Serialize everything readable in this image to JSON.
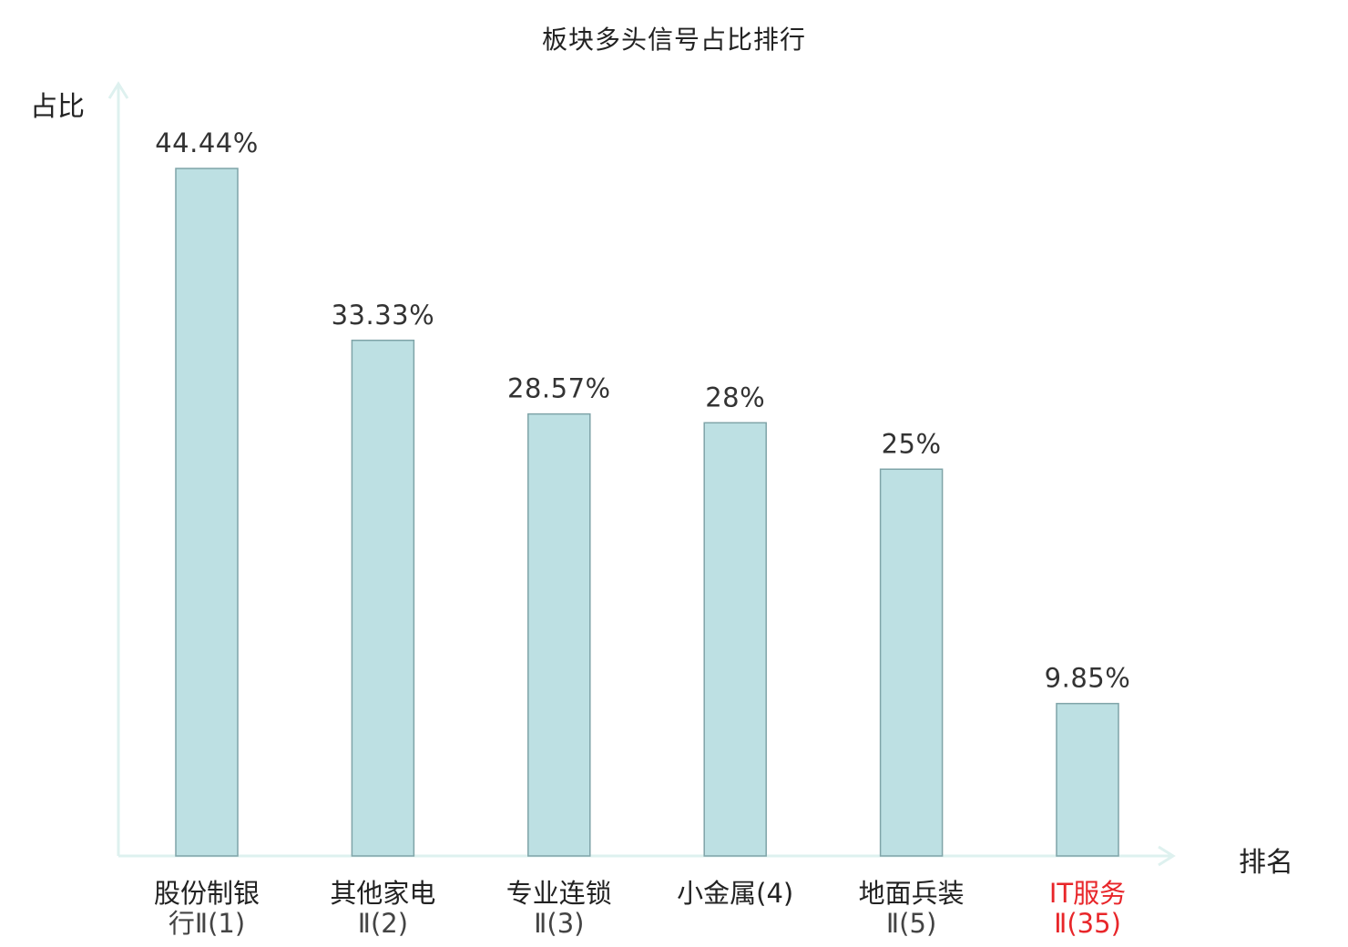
{
  "chart_data": {
    "type": "bar",
    "title": "板块多头信号占比排行",
    "ylabel": "占比",
    "xlabel": "排名",
    "categories": [
      {
        "line1": "股份制银",
        "line2": "行Ⅱ(1)"
      },
      {
        "line1": "其他家电",
        "line2": "Ⅱ(2)"
      },
      {
        "line1": "专业连锁",
        "line2": "Ⅱ(3)"
      },
      {
        "line1": "小金属(4)",
        "line2": ""
      },
      {
        "line1": "地面兵装",
        "line2": "Ⅱ(5)"
      },
      {
        "line1": "IT服务",
        "line2": "Ⅱ(35)"
      }
    ],
    "values": [
      44.44,
      33.33,
      28.57,
      28,
      25,
      9.85
    ],
    "value_labels": [
      "44.44%",
      "33.33%",
      "28.57%",
      "28%",
      "25%",
      "9.85%"
    ],
    "highlight_index": 5,
    "grid": false,
    "colors": {
      "bar_fill": "#bde0e3",
      "bar_stroke": "#7fa4a8",
      "axis": "#def1ef",
      "highlight_text": "#e8262a"
    }
  }
}
